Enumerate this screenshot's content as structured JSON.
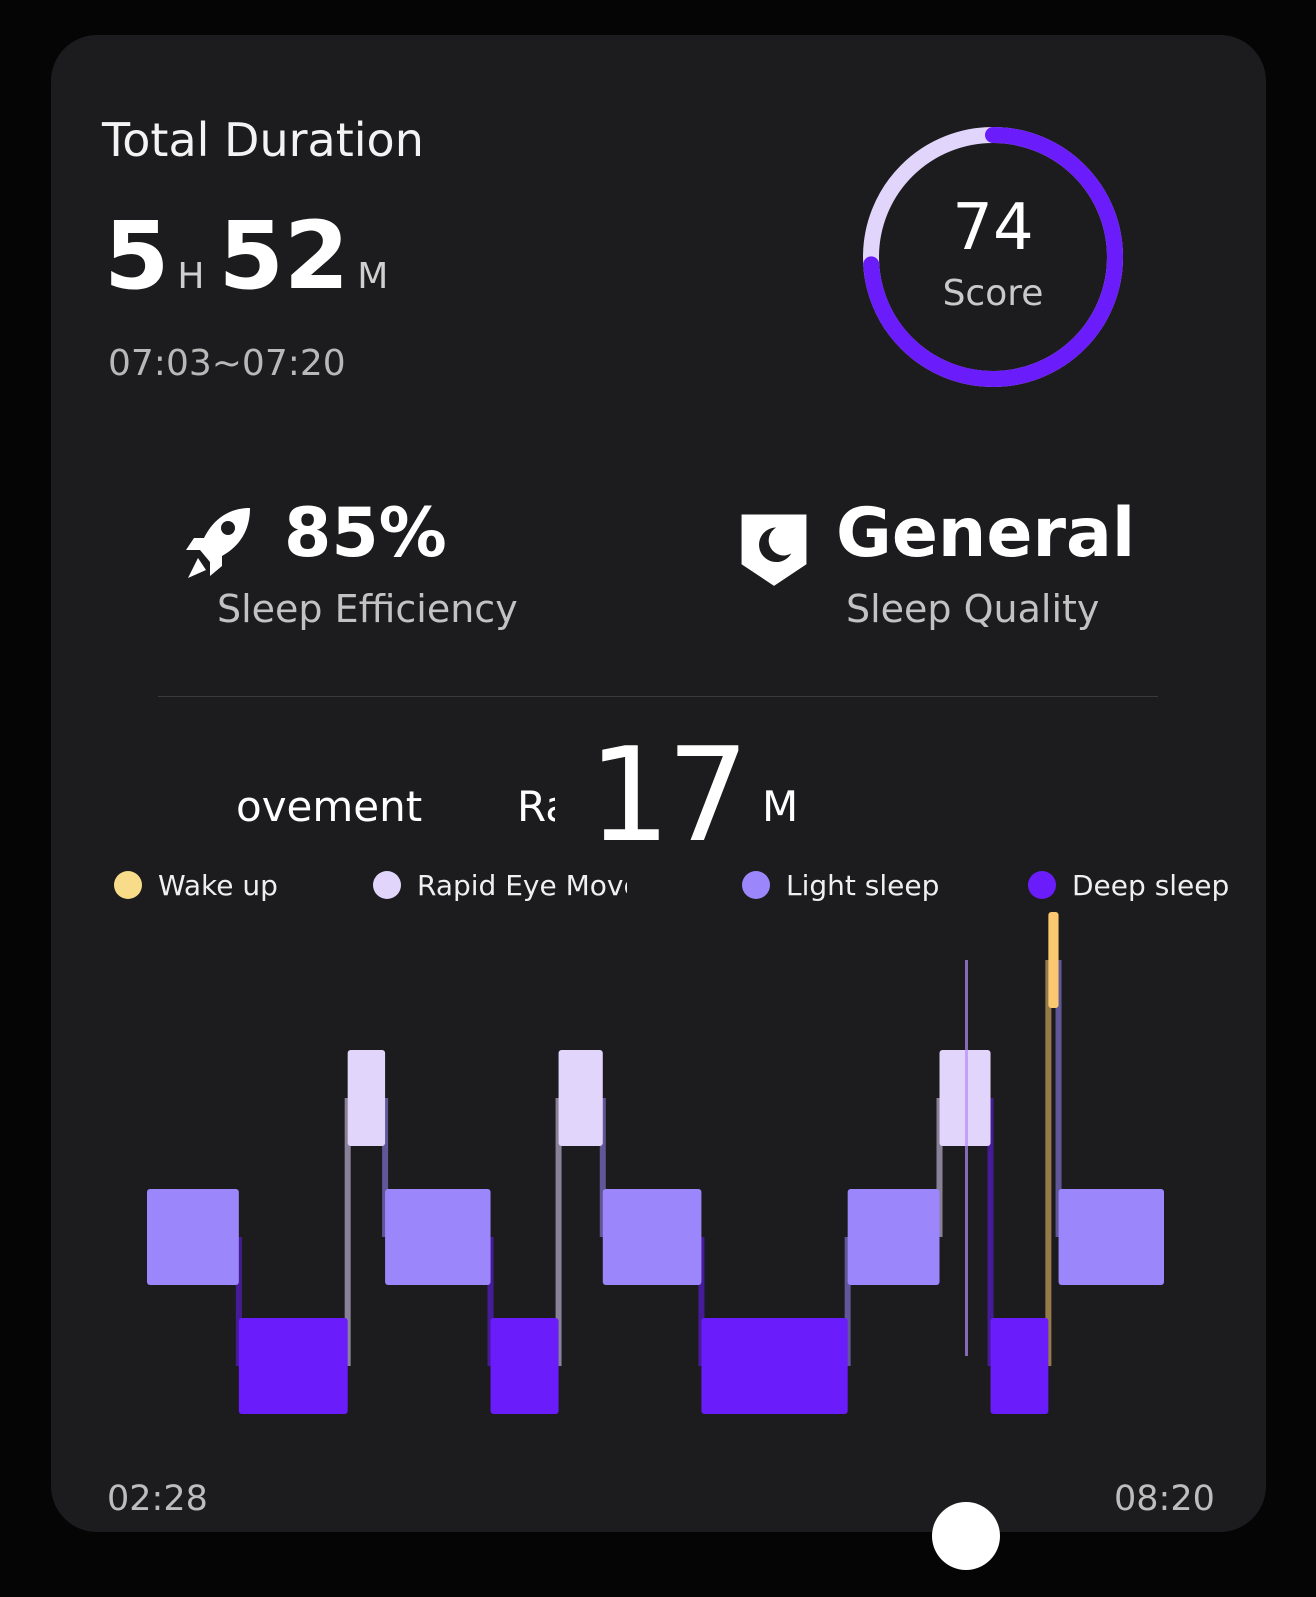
{
  "summary": {
    "title": "Total Duration",
    "hours": "5",
    "hours_unit": "H",
    "minutes": "52",
    "minutes_unit": "M",
    "time_range": "07:03~07:20"
  },
  "score": {
    "value": "74",
    "label": "Score",
    "progress": 0.74
  },
  "stats": {
    "efficiency": {
      "value": "85%",
      "label": "Sleep Efficiency",
      "icon": "rocket-icon"
    },
    "quality": {
      "value": "General",
      "label": "Sleep Quality",
      "icon": "shield-moon-icon"
    }
  },
  "ticker": {
    "left_text": "ovement",
    "mid_text": "Ra",
    "big_value": "17",
    "big_unit": "M"
  },
  "legend": [
    {
      "label": "Wake up",
      "color": "#f9dc8a"
    },
    {
      "label": "Rapid Eye Moveme",
      "color": "#e2d5fb"
    },
    {
      "label": "Light sleep",
      "color": "#9b86fb"
    },
    {
      "label": "Deep sleep",
      "color": "#6a1cfb"
    }
  ],
  "axis": {
    "start": "02:28",
    "end": "08:20"
  },
  "colors": {
    "wake": "#f9c870",
    "rem": "#e2d5fb",
    "light": "#9b86fb",
    "deep": "#6a1cfb",
    "ring_track": "#e2d5fb",
    "ring_fill": "#6a1cfb"
  },
  "chart_data": {
    "type": "bar",
    "stages": [
      "Wake up",
      "Rapid Eye Movement",
      "Light sleep",
      "Deep sleep"
    ],
    "segments": [
      {
        "stage": "Light sleep",
        "start_min": 0,
        "end_min": 27
      },
      {
        "stage": "Deep sleep",
        "start_min": 27,
        "end_min": 59
      },
      {
        "stage": "Rapid Eye Movement",
        "start_min": 59,
        "end_min": 70
      },
      {
        "stage": "Light sleep",
        "start_min": 70,
        "end_min": 101
      },
      {
        "stage": "Deep sleep",
        "start_min": 101,
        "end_min": 121
      },
      {
        "stage": "Rapid Eye Movement",
        "start_min": 121,
        "end_min": 134
      },
      {
        "stage": "Light sleep",
        "start_min": 134,
        "end_min": 163
      },
      {
        "stage": "Deep sleep",
        "start_min": 163,
        "end_min": 206
      },
      {
        "stage": "Light sleep",
        "start_min": 206,
        "end_min": 233
      },
      {
        "stage": "Rapid Eye Movement",
        "start_min": 233,
        "end_min": 248
      },
      {
        "stage": "Deep sleep",
        "start_min": 248,
        "end_min": 265
      },
      {
        "stage": "Wake up",
        "start_min": 265,
        "end_min": 268
      },
      {
        "stage": "Light sleep",
        "start_min": 268,
        "end_min": 299
      }
    ],
    "x_start": "02:28",
    "x_end": "08:20"
  }
}
